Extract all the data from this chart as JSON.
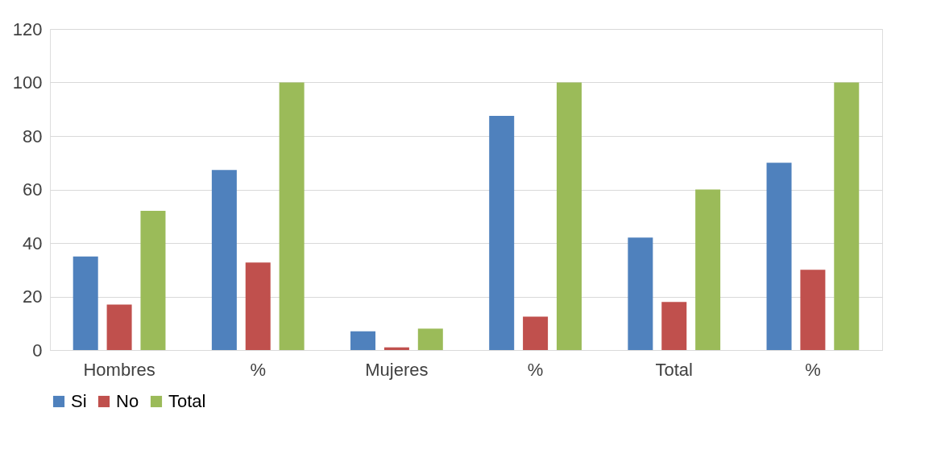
{
  "chart_data": {
    "type": "bar",
    "categories": [
      "Hombres",
      "%",
      "Mujeres",
      "%",
      "Total",
      "%"
    ],
    "series": [
      {
        "name": "Si",
        "color": "#4f81bd",
        "values": [
          35,
          67.3,
          7,
          87.5,
          42,
          70
        ]
      },
      {
        "name": "No",
        "color": "#c0504d",
        "values": [
          17,
          32.7,
          1,
          12.5,
          18,
          30
        ]
      },
      {
        "name": "Total",
        "color": "#9bbb59",
        "values": [
          52,
          100,
          8,
          100,
          60,
          100
        ]
      }
    ],
    "ylim": [
      0,
      120
    ],
    "yticks": [
      0,
      20,
      40,
      60,
      80,
      100,
      120
    ],
    "grid": "y",
    "legend": "bottom"
  }
}
